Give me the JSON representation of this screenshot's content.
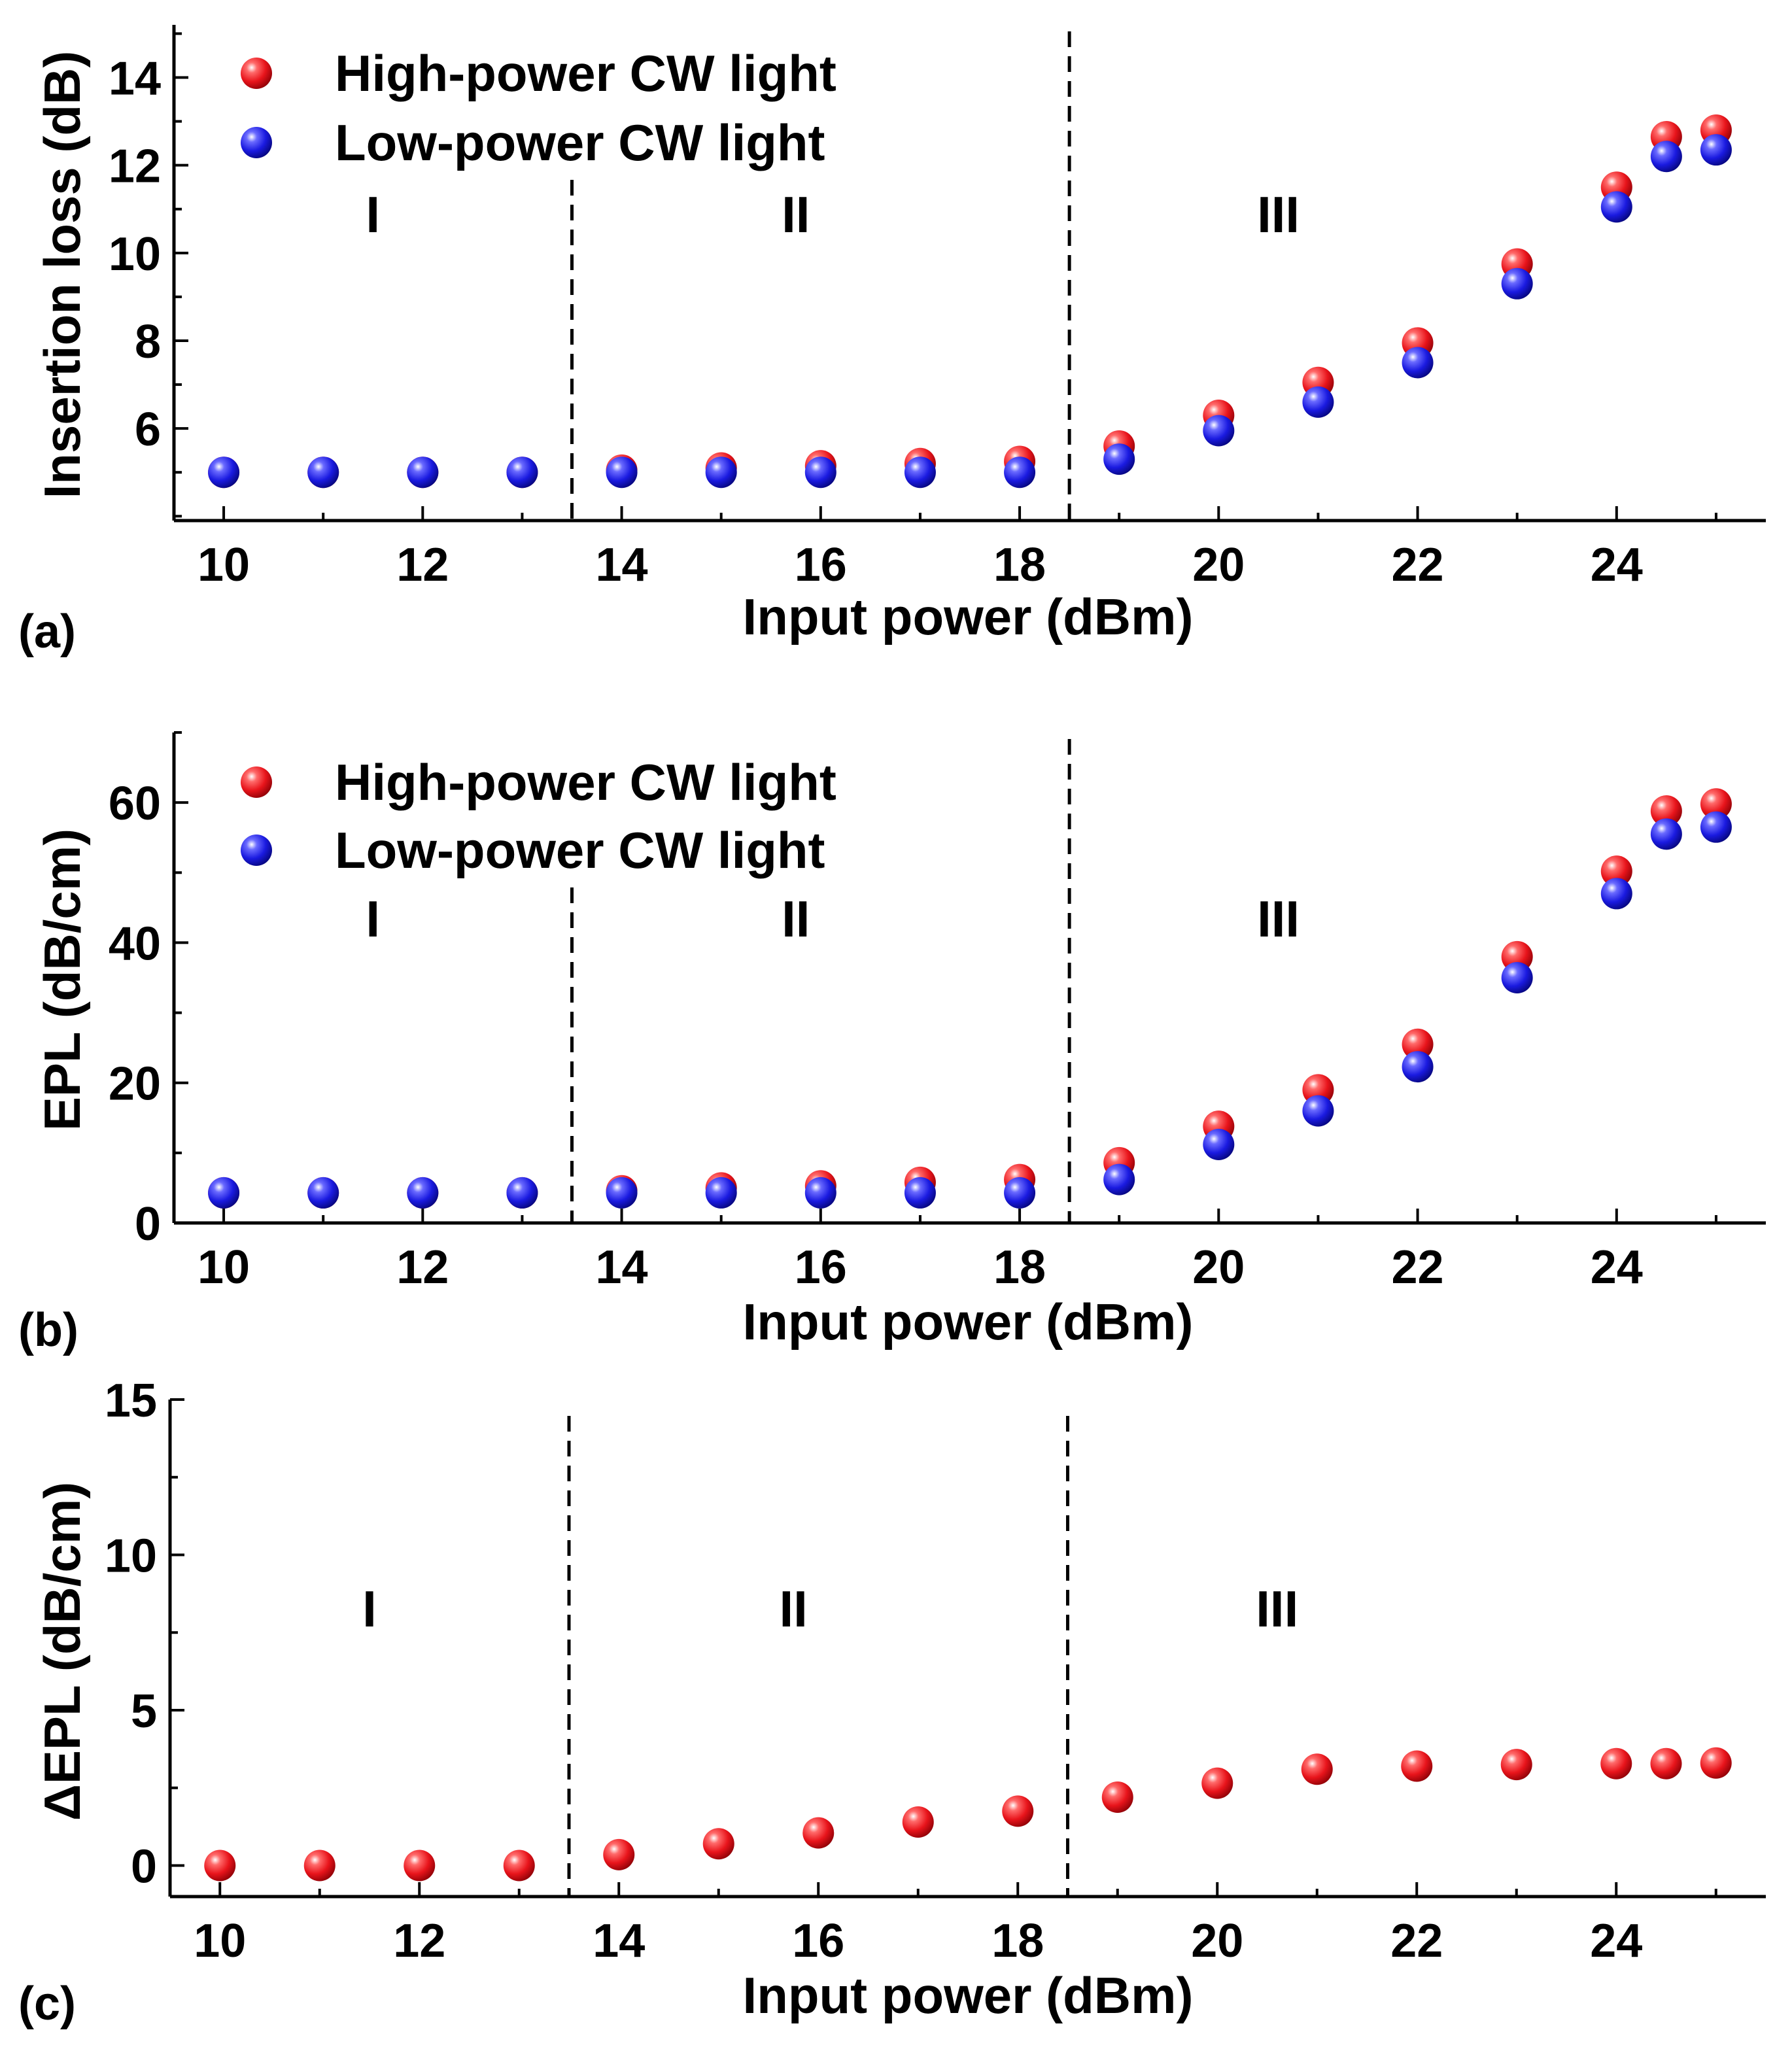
{
  "colors": {
    "high_power": "#e8141b",
    "low_power": "#1a1ae0",
    "axis": "#000000"
  },
  "legend": {
    "high_label": "High-power CW light",
    "low_label": "Low-power CW light"
  },
  "chart_data": [
    {
      "panel_label": "(a)",
      "type": "scatter",
      "xlabel": "Input power (dBm)",
      "ylabel": "Insertion loss (dB)",
      "xlim": [
        9.5,
        25.5
      ],
      "ylim": [
        3.9,
        15.2
      ],
      "xticks": [
        10,
        12,
        14,
        16,
        18,
        20,
        22,
        24
      ],
      "yticks": [
        6,
        8,
        10,
        12,
        14
      ],
      "minor_x_step": 1,
      "minor_y_step": 1,
      "regions": [
        "I",
        "II",
        "III"
      ],
      "region_boundaries": [
        13.5,
        18.5
      ],
      "legend_position": "top-left",
      "series": [
        {
          "name": "High-power CW light",
          "key": "high",
          "x": [
            10,
            11,
            12,
            13,
            14,
            15,
            16,
            17,
            18,
            19,
            20,
            21,
            22,
            23,
            24,
            24.5,
            25
          ],
          "y": [
            5.0,
            5.0,
            5.0,
            5.0,
            5.05,
            5.1,
            5.15,
            5.2,
            5.25,
            5.6,
            6.3,
            7.05,
            7.95,
            9.75,
            11.5,
            12.65,
            12.8
          ]
        },
        {
          "name": "Low-power CW light",
          "key": "low",
          "x": [
            10,
            11,
            12,
            13,
            14,
            15,
            16,
            17,
            18,
            19,
            20,
            21,
            22,
            23,
            24,
            24.5,
            25
          ],
          "y": [
            5.0,
            5.0,
            5.0,
            5.0,
            5.0,
            5.0,
            5.0,
            5.0,
            5.0,
            5.3,
            5.95,
            6.6,
            7.5,
            9.3,
            11.05,
            12.2,
            12.35
          ]
        }
      ]
    },
    {
      "panel_label": "(b)",
      "type": "scatter",
      "xlabel": "Input power (dBm)",
      "ylabel": "EPL (dB/cm)",
      "xlim": [
        9.5,
        25.5
      ],
      "ylim": [
        0,
        70
      ],
      "xticks": [
        10,
        12,
        14,
        16,
        18,
        20,
        22,
        24
      ],
      "yticks": [
        0,
        20,
        40,
        60
      ],
      "minor_x_step": 1,
      "minor_y_step": 10,
      "regions": [
        "I",
        "II",
        "III"
      ],
      "region_boundaries": [
        13.5,
        18.5
      ],
      "legend_position": "top-left",
      "series": [
        {
          "name": "High-power CW light",
          "key": "high",
          "x": [
            10,
            11,
            12,
            13,
            14,
            15,
            16,
            17,
            18,
            19,
            20,
            21,
            22,
            23,
            24,
            24.5,
            25
          ],
          "y": [
            4.3,
            4.3,
            4.3,
            4.3,
            4.6,
            5.0,
            5.3,
            5.8,
            6.2,
            8.6,
            13.8,
            19.0,
            25.5,
            38.0,
            50.2,
            58.8,
            59.8
          ]
        },
        {
          "name": "Low-power CW light",
          "key": "low",
          "x": [
            10,
            11,
            12,
            13,
            14,
            15,
            16,
            17,
            18,
            19,
            20,
            21,
            22,
            23,
            24,
            24.5,
            25
          ],
          "y": [
            4.3,
            4.3,
            4.3,
            4.3,
            4.3,
            4.3,
            4.3,
            4.3,
            4.3,
            6.2,
            11.2,
            16.0,
            22.3,
            35.0,
            47.0,
            55.5,
            56.5
          ]
        }
      ]
    },
    {
      "panel_label": "(c)",
      "type": "scatter",
      "xlabel": "Input power (dBm)",
      "ylabel": "ΔEPL (dB/cm)",
      "xlim": [
        9.5,
        25.5
      ],
      "ylim": [
        -1.0,
        15.0
      ],
      "xticks": [
        10,
        12,
        14,
        16,
        18,
        20,
        22,
        24
      ],
      "yticks": [
        0,
        5,
        10,
        15
      ],
      "minor_x_step": 1,
      "minor_y_step": 2.5,
      "regions": [
        "I",
        "II",
        "III"
      ],
      "region_boundaries": [
        13.5,
        18.5
      ],
      "legend_position": "none",
      "series": [
        {
          "name": "ΔEPL",
          "key": "high",
          "x": [
            10,
            11,
            12,
            13,
            14,
            15,
            16,
            17,
            18,
            19,
            20,
            21,
            22,
            23,
            24,
            24.5,
            25
          ],
          "y": [
            0.0,
            0.0,
            0.0,
            0.0,
            0.35,
            0.7,
            1.05,
            1.4,
            1.75,
            2.2,
            2.65,
            3.1,
            3.2,
            3.25,
            3.28,
            3.28,
            3.3
          ]
        }
      ]
    }
  ]
}
